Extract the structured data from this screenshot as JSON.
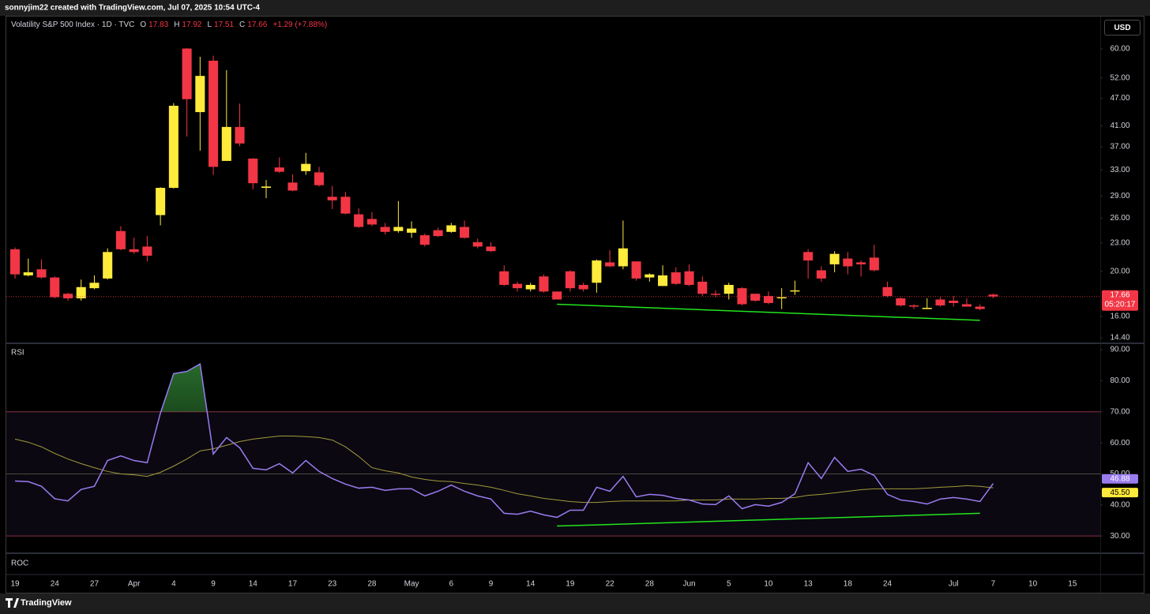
{
  "header": {
    "text": "sonnyjim22 created with TradingView.com, Jul 07, 2025 10:54 UTC-4"
  },
  "footer": {
    "brand": "TradingView"
  },
  "chart_data": [
    {
      "type": "candlestick",
      "title": "Volatility S&P 500 Index · 1D · TVC",
      "currency": "USD",
      "change": "+1.29 (+7.88%)",
      "countdown": "05:20:17",
      "up_color": "#ffeb3b",
      "down_color": "#f23645",
      "log_scale": true,
      "grid": false,
      "series": [
        {
          "name": "O",
          "values": [
            22.3,
            19.6,
            20.2,
            19.4,
            17.9,
            17.5,
            18.4,
            19.3,
            24.4,
            22.3,
            22.6,
            26.4,
            30.2,
            60.1,
            43.9,
            56.6,
            34.5,
            40.8,
            34.9,
            30.2,
            33.4,
            31.0,
            32.8,
            32.6,
            28.9,
            28.9,
            26.5,
            25.9,
            24.9,
            24.4,
            24.2,
            23.9,
            24.5,
            24.3,
            24.9,
            23.1,
            22.6,
            20.0,
            18.8,
            18.3,
            19.5,
            18.1,
            20.0,
            18.7,
            18.9,
            20.9,
            20.5,
            21.0,
            19.4,
            18.6,
            19.9,
            20.0,
            19.0,
            17.9,
            17.9,
            18.4,
            17.9,
            17.7,
            17.5,
            18.1,
            22.0,
            20.1,
            20.7,
            21.3,
            20.9,
            21.4,
            18.5,
            17.5,
            16.9,
            16.6,
            17.4,
            17.3,
            17.0,
            16.8,
            17.83
          ]
        },
        {
          "name": "H",
          "values": [
            22.5,
            21.3,
            21.2,
            19.5,
            18.0,
            19.2,
            19.6,
            22.4,
            25.0,
            23.6,
            23.8,
            30.3,
            45.9,
            60.2,
            57.7,
            58.0,
            54.0,
            45.8,
            35.0,
            31.4,
            35.1,
            32.3,
            35.9,
            33.5,
            30.5,
            29.6,
            27.3,
            26.8,
            25.4,
            28.3,
            25.6,
            24.1,
            24.8,
            25.4,
            25.7,
            23.5,
            23.1,
            20.6,
            19.0,
            18.9,
            19.7,
            18.1,
            20.1,
            18.9,
            21.2,
            22.2,
            25.7,
            21.0,
            19.8,
            20.6,
            20.4,
            20.7,
            19.5,
            18.2,
            18.9,
            18.5,
            17.9,
            18.1,
            18.4,
            19.1,
            22.3,
            20.5,
            22.1,
            22.0,
            21.1,
            22.8,
            19.0,
            17.6,
            17.0,
            17.5,
            17.6,
            17.7,
            17.5,
            17.0,
            17.92
          ]
        },
        {
          "name": "L",
          "values": [
            19.3,
            19.5,
            19.3,
            17.5,
            17.3,
            17.3,
            18.3,
            19.2,
            22.2,
            21.8,
            21.0,
            25.1,
            30.1,
            38.9,
            36.3,
            32.2,
            34.5,
            37.1,
            30.0,
            28.7,
            32.5,
            29.7,
            32.2,
            30.4,
            27.2,
            26.5,
            24.8,
            25.0,
            24.0,
            24.2,
            23.6,
            22.6,
            23.7,
            24.2,
            23.5,
            22.4,
            22.0,
            18.6,
            18.1,
            18.1,
            18.0,
            17.4,
            18.1,
            18.1,
            18.0,
            20.4,
            20.2,
            19.1,
            19.0,
            18.6,
            18.7,
            18.6,
            17.7,
            17.6,
            17.4,
            16.9,
            17.2,
            17.0,
            16.6,
            17.8,
            19.3,
            19.0,
            19.9,
            19.7,
            19.5,
            20.0,
            17.6,
            16.8,
            16.6,
            16.6,
            16.8,
            16.8,
            16.8,
            16.5,
            17.51
          ]
        },
        {
          "name": "C",
          "values": [
            19.7,
            19.9,
            19.4,
            17.6,
            17.5,
            18.5,
            18.9,
            22.0,
            22.3,
            22.0,
            21.6,
            30.2,
            45.3,
            46.8,
            52.5,
            33.5,
            40.8,
            37.6,
            30.9,
            30.4,
            32.7,
            29.8,
            34.0,
            30.6,
            28.4,
            26.6,
            24.9,
            25.2,
            24.3,
            24.9,
            24.7,
            22.8,
            23.8,
            25.1,
            23.6,
            22.6,
            22.1,
            18.7,
            18.4,
            18.7,
            18.1,
            17.4,
            18.4,
            18.3,
            21.1,
            20.5,
            22.4,
            19.3,
            19.7,
            19.6,
            18.8,
            18.7,
            17.9,
            17.8,
            18.7,
            17.0,
            17.3,
            17.1,
            17.6,
            18.2,
            21.1,
            19.3,
            21.8,
            20.5,
            20.7,
            20.1,
            17.7,
            16.9,
            16.8,
            16.7,
            16.9,
            17.1,
            16.8,
            16.6,
            17.66
          ]
        }
      ],
      "ylim": [
        14.07,
        70.1
      ],
      "yticks": [
        {
          "value": 14.4,
          "label": "14.40"
        },
        {
          "value": 16,
          "label": "16.00"
        },
        {
          "value": 20,
          "label": "20.00"
        },
        {
          "value": 23,
          "label": "23.00"
        },
        {
          "value": 26,
          "label": "26.00"
        },
        {
          "value": 29,
          "label": "29.00"
        },
        {
          "value": 33,
          "label": "33.00"
        },
        {
          "value": 37,
          "label": "37.00"
        },
        {
          "value": 41,
          "label": "41.00"
        },
        {
          "value": 47,
          "label": "47.00"
        },
        {
          "value": 52,
          "label": "52.00"
        },
        {
          "value": 60,
          "label": "60.00"
        }
      ],
      "xlim": [
        -0.66,
        82.1
      ],
      "xticks": [
        {
          "value": 0,
          "label": "19"
        },
        {
          "value": 3,
          "label": "24"
        },
        {
          "value": 6,
          "label": "27"
        },
        {
          "value": 9,
          "label": "Apr"
        },
        {
          "value": 12,
          "label": "4"
        },
        {
          "value": 15,
          "label": "9"
        },
        {
          "value": 18,
          "label": "14"
        },
        {
          "value": 21,
          "label": "17"
        },
        {
          "value": 24,
          "label": "23"
        },
        {
          "value": 27,
          "label": "28"
        },
        {
          "value": 30,
          "label": "May"
        },
        {
          "value": 33,
          "label": "6"
        },
        {
          "value": 36,
          "label": "9"
        },
        {
          "value": 39,
          "label": "14"
        },
        {
          "value": 42,
          "label": "19"
        },
        {
          "value": 45,
          "label": "22"
        },
        {
          "value": 48,
          "label": "28"
        },
        {
          "value": 51,
          "label": "Jun"
        },
        {
          "value": 54,
          "label": "5"
        },
        {
          "value": 57,
          "label": "10"
        },
        {
          "value": 60,
          "label": "13"
        },
        {
          "value": 63,
          "label": "18"
        },
        {
          "value": 66,
          "label": "24"
        },
        {
          "value": 71,
          "label": "Jul"
        },
        {
          "value": 74,
          "label": "7"
        },
        {
          "value": 77,
          "label": "10"
        },
        {
          "value": 80,
          "label": "15"
        }
      ],
      "trendlines": [
        {
          "x": [
            41,
            73
          ],
          "y": [
            17.0,
            15.7
          ],
          "color": "#22e51e"
        }
      ]
    },
    {
      "type": "line",
      "title": "RSI",
      "series": [
        {
          "color": "#9a7cf0",
          "values": [
            47.7,
            47.5,
            46.0,
            42.0,
            41.3,
            45.0,
            46.0,
            54.3,
            55.8,
            54.3,
            53.6,
            69.6,
            82.3,
            83.0,
            85.4,
            56.4,
            61.7,
            58.4,
            51.8,
            51.3,
            53.3,
            50.3,
            54.3,
            50.8,
            48.5,
            46.7,
            45.4,
            45.7,
            44.7,
            45.2,
            45.2,
            42.9,
            44.4,
            46.4,
            44.4,
            42.9,
            41.9,
            37.3,
            37.0,
            38.0,
            36.8,
            36.0,
            38.3,
            38.3,
            45.7,
            44.4,
            49.2,
            42.6,
            43.4,
            43.1,
            42.1,
            41.6,
            40.3,
            40.1,
            42.9,
            38.8,
            40.1,
            39.6,
            40.8,
            43.6,
            53.6,
            48.5,
            55.3,
            50.8,
            51.5,
            49.5,
            43.4,
            41.6,
            41.1,
            40.3,
            41.9,
            42.4,
            41.9,
            41.1,
            46.88
          ]
        },
        {
          "color": "#a39a3c",
          "last_label": "45.50",
          "values": [
            61.2,
            60.2,
            58.7,
            56.6,
            54.8,
            53.3,
            52.0,
            50.8,
            50.0,
            49.7,
            49.2,
            50.5,
            52.5,
            54.8,
            57.4,
            58.1,
            59.2,
            60.4,
            61.2,
            61.7,
            62.2,
            62.2,
            62.0,
            61.7,
            60.9,
            58.7,
            55.6,
            52.0,
            51.0,
            50.3,
            49.0,
            48.2,
            47.7,
            47.5,
            46.9,
            46.4,
            45.7,
            44.7,
            43.6,
            42.9,
            42.1,
            41.6,
            41.1,
            40.8,
            40.8,
            41.1,
            41.3,
            41.3,
            41.3,
            41.3,
            41.3,
            41.6,
            41.6,
            41.6,
            41.9,
            41.9,
            41.9,
            42.1,
            42.1,
            42.4,
            43.1,
            43.4,
            43.9,
            44.4,
            44.9,
            45.2,
            45.2,
            45.2,
            45.2,
            45.4,
            45.7,
            45.9,
            46.2,
            46.0,
            45.5
          ]
        }
      ],
      "ylim": [
        24.7,
        91.8
      ],
      "yticks": [
        {
          "value": 30,
          "label": "30.00"
        },
        {
          "value": 40,
          "label": "40.00"
        },
        {
          "value": 50,
          "label": "50.00"
        },
        {
          "value": 60,
          "label": "60.00"
        },
        {
          "value": 70,
          "label": "70.00"
        },
        {
          "value": 80,
          "label": "80.00"
        },
        {
          "value": 90,
          "label": "90.00"
        }
      ],
      "bands": {
        "upper": 70,
        "middle": 50,
        "lower": 30
      },
      "trendlines": [
        {
          "x": [
            41,
            73
          ],
          "y": [
            33.2,
            37.3
          ],
          "color": "#22e51e"
        }
      ]
    },
    {
      "type": "empty",
      "title": "ROC"
    }
  ]
}
